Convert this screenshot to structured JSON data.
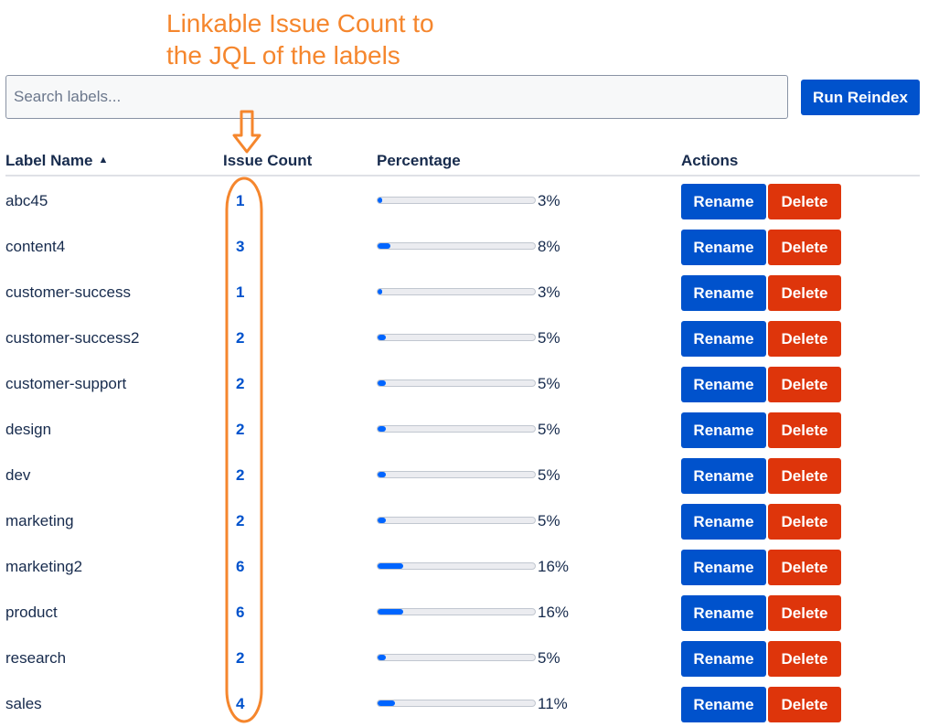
{
  "search": {
    "placeholder": "Search labels..."
  },
  "toolbar": {
    "reindex_label": "Run Reindex"
  },
  "annotation": {
    "text": "Linkable Issue Count to the JQL of the labels"
  },
  "table": {
    "headers": {
      "name": "Label Name",
      "count": "Issue Count",
      "percentage": "Percentage",
      "actions": "Actions"
    },
    "sort": "ascending",
    "rows": [
      {
        "name": "abc45",
        "count": "1",
        "percent_text": "3%",
        "percent": 3
      },
      {
        "name": "content4",
        "count": "3",
        "percent_text": "8%",
        "percent": 8
      },
      {
        "name": "customer-success",
        "count": "1",
        "percent_text": "3%",
        "percent": 3
      },
      {
        "name": "customer-success2",
        "count": "2",
        "percent_text": "5%",
        "percent": 5
      },
      {
        "name": "customer-support",
        "count": "2",
        "percent_text": "5%",
        "percent": 5
      },
      {
        "name": "design",
        "count": "2",
        "percent_text": "5%",
        "percent": 5
      },
      {
        "name": "dev",
        "count": "2",
        "percent_text": "5%",
        "percent": 5
      },
      {
        "name": "marketing",
        "count": "2",
        "percent_text": "5%",
        "percent": 5
      },
      {
        "name": "marketing2",
        "count": "6",
        "percent_text": "16%",
        "percent": 16
      },
      {
        "name": "product",
        "count": "6",
        "percent_text": "16%",
        "percent": 16
      },
      {
        "name": "research",
        "count": "2",
        "percent_text": "5%",
        "percent": 5
      },
      {
        "name": "sales",
        "count": "4",
        "percent_text": "11%",
        "percent": 11
      }
    ],
    "rename_label": "Rename",
    "delete_label": "Delete"
  },
  "colors": {
    "primary": "#0052cc",
    "danger": "#de350b",
    "annotation": "#f5862d",
    "bar_fill": "#0065ff"
  }
}
